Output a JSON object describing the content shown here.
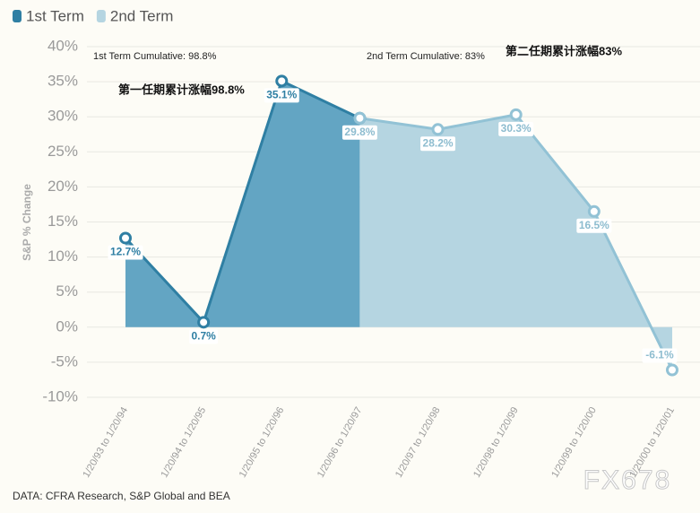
{
  "chart_data": {
    "type": "line",
    "categories": [
      "1/20/93 to 1/20/94",
      "1/20/94 to 1/20/95",
      "1/20/95 to 1/20/96",
      "1/20/96 to 1/20/97",
      "1/20/97 to 1/20/98",
      "1/20/98 to 1/20/99",
      "1/20/99 to 1/20/00",
      "1/20/00 to 1/20/01"
    ],
    "series": [
      {
        "name": "1st Term",
        "color": "#2f7fa3",
        "fill": "#63a5c3",
        "values": [
          12.7,
          0.7,
          35.1,
          29.8,
          null,
          null,
          null,
          null
        ],
        "value_labels": [
          "12.7%",
          "0.7%",
          "35.1%",
          null,
          null,
          null,
          null,
          null
        ]
      },
      {
        "name": "2nd Term",
        "color": "#92c2d5",
        "fill": "#b5d5e1",
        "values": [
          null,
          null,
          null,
          29.8,
          28.2,
          30.3,
          16.5,
          -6.1
        ],
        "value_labels": [
          null,
          null,
          null,
          "29.8%",
          "28.2%",
          "30.3%",
          "16.5%",
          "-6.1%"
        ]
      }
    ],
    "ylabel": "S&P % Change",
    "ylim": [
      -10,
      40
    ],
    "yticks": [
      {
        "value": -10,
        "label": "-10%"
      },
      {
        "value": -5,
        "label": "-5%"
      },
      {
        "value": 0,
        "label": "0%"
      },
      {
        "value": 5,
        "label": "5%"
      },
      {
        "value": 10,
        "label": "10%"
      },
      {
        "value": 15,
        "label": "15%"
      },
      {
        "value": 20,
        "label": "20%"
      },
      {
        "value": 25,
        "label": "25%"
      },
      {
        "value": 30,
        "label": "30%"
      },
      {
        "value": 35,
        "label": "35%"
      },
      {
        "value": 40,
        "label": "40%"
      }
    ],
    "grid": true,
    "annotations": [
      "1st Term Cumulative: 98.8%",
      "2nd Term Cumulative: 83%",
      "第一任期累计涨幅98.8%",
      "第二任期累计涨幅83%"
    ],
    "source": "DATA: CFRA Research, S&P Global and BEA",
    "watermark": "FX678"
  }
}
